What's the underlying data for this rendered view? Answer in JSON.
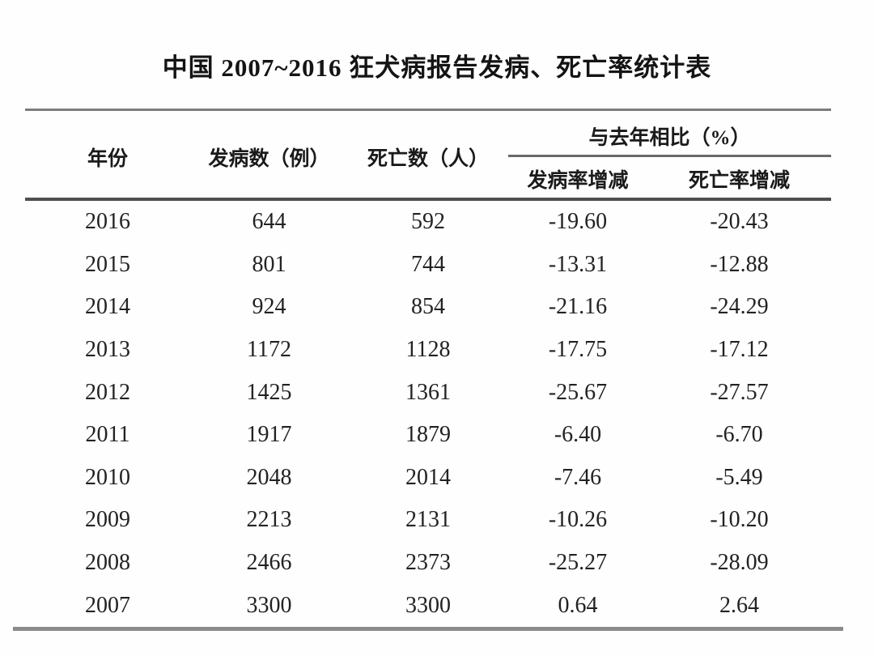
{
  "title": "中国 2007~2016 狂犬病报告发病、死亡率统计表",
  "table": {
    "columns": {
      "year": "年份",
      "cases": "发病数（例）",
      "deaths": "死亡数（人）",
      "group": "与去年相比（%）",
      "incidence_change": "发病率增减",
      "mortality_change": "死亡率增减"
    },
    "rows": [
      {
        "year": "2016",
        "cases": "644",
        "deaths": "592",
        "incidence_change": "-19.60",
        "mortality_change": "-20.43"
      },
      {
        "year": "2015",
        "cases": "801",
        "deaths": "744",
        "incidence_change": "-13.31",
        "mortality_change": "-12.88"
      },
      {
        "year": "2014",
        "cases": "924",
        "deaths": "854",
        "incidence_change": "-21.16",
        "mortality_change": "-24.29"
      },
      {
        "year": "2013",
        "cases": "1172",
        "deaths": "1128",
        "incidence_change": "-17.75",
        "mortality_change": "-17.12"
      },
      {
        "year": "2012",
        "cases": "1425",
        "deaths": "1361",
        "incidence_change": "-25.67",
        "mortality_change": "-27.57"
      },
      {
        "year": "2011",
        "cases": "1917",
        "deaths": "1879",
        "incidence_change": "-6.40",
        "mortality_change": "-6.70"
      },
      {
        "year": "2010",
        "cases": "2048",
        "deaths": "2014",
        "incidence_change": "-7.46",
        "mortality_change": "-5.49"
      },
      {
        "year": "2009",
        "cases": "2213",
        "deaths": "2131",
        "incidence_change": "-10.26",
        "mortality_change": "-10.20"
      },
      {
        "year": "2008",
        "cases": "2466",
        "deaths": "2373",
        "incidence_change": "-25.27",
        "mortality_change": "-28.09"
      },
      {
        "year": "2007",
        "cases": "3300",
        "deaths": "3300",
        "incidence_change": "0.64",
        "mortality_change": "2.64"
      }
    ]
  },
  "chart_data": {
    "type": "table",
    "title": "中国 2007~2016 狂犬病报告发病、死亡率统计表",
    "columns": [
      "年份",
      "发病数（例）",
      "死亡数（人）",
      "发病率增减（与去年相比%）",
      "死亡率增减（与去年相比%）"
    ],
    "rows": [
      [
        2016,
        644,
        592,
        -19.6,
        -20.43
      ],
      [
        2015,
        801,
        744,
        -13.31,
        -12.88
      ],
      [
        2014,
        924,
        854,
        -21.16,
        -24.29
      ],
      [
        2013,
        1172,
        1128,
        -17.75,
        -17.12
      ],
      [
        2012,
        1425,
        1361,
        -25.67,
        -27.57
      ],
      [
        2011,
        1917,
        1879,
        -6.4,
        -6.7
      ],
      [
        2010,
        2048,
        2014,
        -7.46,
        -5.49
      ],
      [
        2009,
        2213,
        2131,
        -10.26,
        -10.2
      ],
      [
        2008,
        2466,
        2373,
        -25.27,
        -28.09
      ],
      [
        2007,
        3300,
        3300,
        0.64,
        2.64
      ]
    ]
  }
}
